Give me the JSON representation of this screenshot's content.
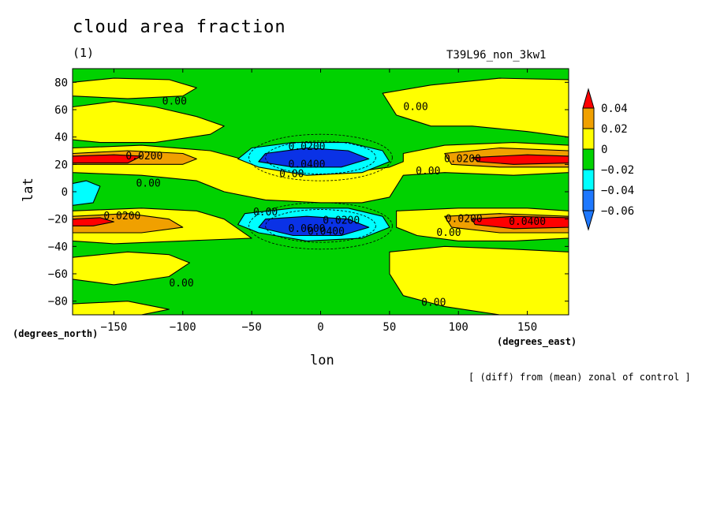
{
  "header": {
    "title": "cloud area fraction",
    "subtitle": "(1)",
    "run_name": "T39L96_non_3kw1",
    "footnote": "[ (diff) from (mean) zonal of control ]"
  },
  "axes": {
    "ylabel": "lat",
    "xlabel": "lon",
    "y_units": "(degrees_north)",
    "x_units": "(degrees_east)"
  },
  "colors": {
    "neg_0_06": "#1e78ff",
    "neg_0_04": "#00ffff",
    "neg_0_02": "#00d200",
    "zero_to_0_02": "#ffff00",
    "pos_0_02": "#f0a000",
    "pos_0_04": "#ff0000",
    "deep_neg": "#0a32e6"
  },
  "chart_data": {
    "type": "heatmap",
    "title": "cloud area fraction",
    "subtitle": "(1)",
    "xlabel": "lon",
    "ylabel": "lat",
    "xlim": [
      -180,
      180
    ],
    "ylim": [
      -90,
      90
    ],
    "x_ticks": [
      -150,
      -100,
      -50,
      0,
      50,
      100,
      150
    ],
    "x_tick_labels": [
      "−150",
      "−100",
      "−50",
      "0",
      "50",
      "100",
      "150"
    ],
    "y_ticks": [
      -80,
      -60,
      -40,
      -20,
      0,
      20,
      40,
      60,
      80
    ],
    "y_tick_labels": [
      "−80",
      "−60",
      "−40",
      "−20",
      "0",
      "20",
      "40",
      "60",
      "80"
    ],
    "colorbar": {
      "levels": [
        0.04,
        0.02,
        0,
        -0.02,
        -0.04,
        -0.06
      ],
      "labels": [
        "0.04",
        "0.02",
        "0",
        "−0.02",
        "−0.04",
        "−0.06"
      ]
    },
    "contour_labels": [
      {
        "text": "0.00",
        "lon": -106,
        "lat": 66
      },
      {
        "text": "0.00",
        "lon": 69,
        "lat": 62
      },
      {
        "text": "0.0200",
        "lon": -128,
        "lat": 26
      },
      {
        "text": "0.0200",
        "lon": -10,
        "lat": 33
      },
      {
        "text": "0.0400",
        "lon": -10,
        "lat": 20
      },
      {
        "text": "0.00",
        "lon": -21,
        "lat": 13
      },
      {
        "text": "0.00",
        "lon": 78,
        "lat": 15
      },
      {
        "text": "0.0200",
        "lon": 103,
        "lat": 24
      },
      {
        "text": "0.00",
        "lon": -125,
        "lat": 6
      },
      {
        "text": "0.00",
        "lon": -40,
        "lat": -15
      },
      {
        "text": "0.0200",
        "lon": -144,
        "lat": -18
      },
      {
        "text": "0.0200",
        "lon": 15,
        "lat": -21
      },
      {
        "text": "0.0600",
        "lon": -10,
        "lat": -27
      },
      {
        "text": "0.0400",
        "lon": 4,
        "lat": -29
      },
      {
        "text": "0.0200",
        "lon": 104,
        "lat": -20
      },
      {
        "text": "0.0400",
        "lon": 150,
        "lat": -22
      },
      {
        "text": "0.00",
        "lon": 93,
        "lat": -30
      },
      {
        "text": "0.00",
        "lon": -101,
        "lat": -67
      },
      {
        "text": "0.00",
        "lon": 82,
        "lat": -81
      }
    ]
  }
}
